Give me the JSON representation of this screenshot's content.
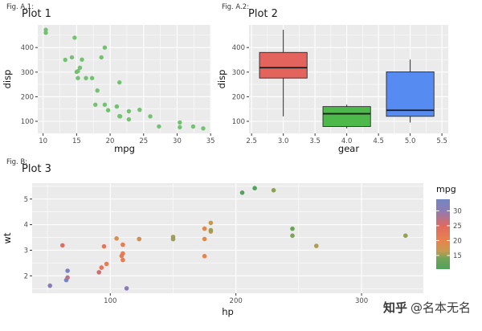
{
  "figure": {
    "background": "#FFFFFF",
    "panel_bg": "#EBEBEB",
    "grid_color": "#FFFFFF",
    "tick_color": "#333333",
    "tick_label_color": "#4D4D4D",
    "axis_title_color": "#111111"
  },
  "watermark": {
    "brand": "知乎",
    "handle": "@名本无名"
  },
  "chart_data": [
    {
      "id": "plot1",
      "type": "scatter",
      "fig_label": "Fig. A.1:",
      "title": "Plot 1",
      "xlabel": "mpg",
      "ylabel": "disp",
      "xlim": [
        9.2,
        35.1
      ],
      "ylim": [
        51,
        492
      ],
      "grid": true,
      "point_color": "#74C174",
      "x_ticks": [
        {
          "v": 10,
          "label": "10"
        },
        {
          "v": 15,
          "label": "15"
        },
        {
          "v": 20,
          "label": "20"
        },
        {
          "v": 25,
          "label": "25"
        },
        {
          "v": 30,
          "label": "30"
        },
        {
          "v": 35,
          "label": "35"
        }
      ],
      "y_ticks": [
        {
          "v": 100,
          "label": "100"
        },
        {
          "v": 200,
          "label": "200"
        },
        {
          "v": 300,
          "label": "300"
        },
        {
          "v": 400,
          "label": "400"
        }
      ],
      "points": [
        [
          21,
          160
        ],
        [
          21,
          160
        ],
        [
          22.8,
          108
        ],
        [
          21.4,
          258
        ],
        [
          18.7,
          360
        ],
        [
          18.1,
          225
        ],
        [
          14.3,
          360
        ],
        [
          24.4,
          146.7
        ],
        [
          22.8,
          140.8
        ],
        [
          19.2,
          167.6
        ],
        [
          17.8,
          167.6
        ],
        [
          16.4,
          275.8
        ],
        [
          17.3,
          275.8
        ],
        [
          15.2,
          275.8
        ],
        [
          10.4,
          472
        ],
        [
          10.4,
          460
        ],
        [
          14.7,
          440
        ],
        [
          32.4,
          78.7
        ],
        [
          30.4,
          75.7
        ],
        [
          33.9,
          71.1
        ],
        [
          21.5,
          120.1
        ],
        [
          15.5,
          318
        ],
        [
          15.2,
          304
        ],
        [
          13.3,
          350
        ],
        [
          19.2,
          400
        ],
        [
          27.3,
          79
        ],
        [
          26,
          120.3
        ],
        [
          30.4,
          95.1
        ],
        [
          15.8,
          351
        ],
        [
          19.7,
          145
        ],
        [
          15,
          301
        ],
        [
          21.4,
          121
        ]
      ]
    },
    {
      "id": "plot2",
      "type": "box",
      "fig_label": "Fig. A.2:",
      "title": "Plot 2",
      "xlabel": "gear",
      "ylabel": "disp",
      "xlim": [
        2.46,
        5.6
      ],
      "ylim": [
        51,
        492
      ],
      "grid": true,
      "box_width": 0.75,
      "x_ticks": [
        {
          "v": 2.5,
          "label": "2.5"
        },
        {
          "v": 3,
          "label": "3.0"
        },
        {
          "v": 3.5,
          "label": "3.5"
        },
        {
          "v": 4,
          "label": "4.0"
        },
        {
          "v": 4.5,
          "label": "4.5"
        },
        {
          "v": 5,
          "label": "5.0"
        },
        {
          "v": 5.5,
          "label": "5.5"
        }
      ],
      "y_ticks": [
        {
          "v": 100,
          "label": "100"
        },
        {
          "v": 200,
          "label": "200"
        },
        {
          "v": 300,
          "label": "300"
        },
        {
          "v": 400,
          "label": "400"
        }
      ],
      "boxes": [
        {
          "x": 3,
          "fill": "#E3645C",
          "min": 120.1,
          "q1": 275.8,
          "median": 318,
          "q3": 380,
          "max": 472
        },
        {
          "x": 4,
          "fill": "#4EB94B",
          "min": 71.1,
          "q1": 78.9,
          "median": 130.9,
          "q3": 160,
          "max": 167.6
        },
        {
          "x": 5,
          "fill": "#568BF2",
          "min": 95.1,
          "q1": 120.3,
          "median": 145,
          "q3": 301,
          "max": 351
        }
      ]
    },
    {
      "id": "plot3",
      "type": "scatter-gradient",
      "fig_label": "Fig. B:",
      "title": "Plot 3",
      "xlabel": "hp",
      "ylabel": "wt",
      "xlim": [
        37.8,
        349.2
      ],
      "ylim": [
        1.32,
        5.62
      ],
      "grid": true,
      "x_ticks": [
        {
          "v": 100,
          "label": "100"
        },
        {
          "v": 200,
          "label": "200"
        },
        {
          "v": 300,
          "label": "300"
        }
      ],
      "y_ticks": [
        {
          "v": 2,
          "label": "2"
        },
        {
          "v": 3,
          "label": "3"
        },
        {
          "v": 4,
          "label": "4"
        },
        {
          "v": 5,
          "label": "5"
        }
      ],
      "points": [
        [
          110,
          2.62,
          21
        ],
        [
          110,
          2.875,
          21
        ],
        [
          93,
          2.32,
          22.8
        ],
        [
          110,
          3.215,
          21.4
        ],
        [
          175,
          3.44,
          18.7
        ],
        [
          105,
          3.46,
          18.1
        ],
        [
          245,
          3.57,
          14.3
        ],
        [
          62,
          3.19,
          24.4
        ],
        [
          95,
          3.15,
          22.8
        ],
        [
          123,
          3.44,
          19.2
        ],
        [
          123,
          3.44,
          17.8
        ],
        [
          180,
          4.07,
          16.4
        ],
        [
          180,
          3.73,
          17.3
        ],
        [
          180,
          3.78,
          15.2
        ],
        [
          205,
          5.25,
          10.4
        ],
        [
          215,
          5.424,
          10.4
        ],
        [
          230,
          5.345,
          14.7
        ],
        [
          66,
          2.2,
          32.4
        ],
        [
          52,
          1.615,
          30.4
        ],
        [
          65,
          1.835,
          33.9
        ],
        [
          97,
          2.465,
          21.5
        ],
        [
          150,
          3.52,
          15.5
        ],
        [
          150,
          3.435,
          15.2
        ],
        [
          245,
          3.84,
          13.3
        ],
        [
          175,
          3.845,
          19.2
        ],
        [
          66,
          1.935,
          27.3
        ],
        [
          91,
          2.14,
          26
        ],
        [
          113,
          1.513,
          30.4
        ],
        [
          264,
          3.17,
          15.8
        ],
        [
          175,
          2.77,
          19.7
        ],
        [
          335,
          3.57,
          15
        ],
        [
          109,
          2.78,
          21.4
        ]
      ],
      "legend": {
        "title": "mpg",
        "position": "right",
        "domain": [
          10.4,
          33.9
        ],
        "ticks": [
          {
            "v": 30,
            "label": "30"
          },
          {
            "v": 25,
            "label": "25"
          },
          {
            "v": 20,
            "label": "20"
          },
          {
            "v": 15,
            "label": "15"
          }
        ],
        "gradient_stops": [
          {
            "at": 10.4,
            "color": "#52A15C"
          },
          {
            "at": 14,
            "color": "#72A457"
          },
          {
            "at": 16.5,
            "color": "#C79A50"
          },
          {
            "at": 20,
            "color": "#E8834E"
          },
          {
            "at": 25,
            "color": "#DF6A60"
          },
          {
            "at": 30,
            "color": "#8E7BB3"
          },
          {
            "at": 33.9,
            "color": "#7486C3"
          }
        ]
      }
    }
  ]
}
